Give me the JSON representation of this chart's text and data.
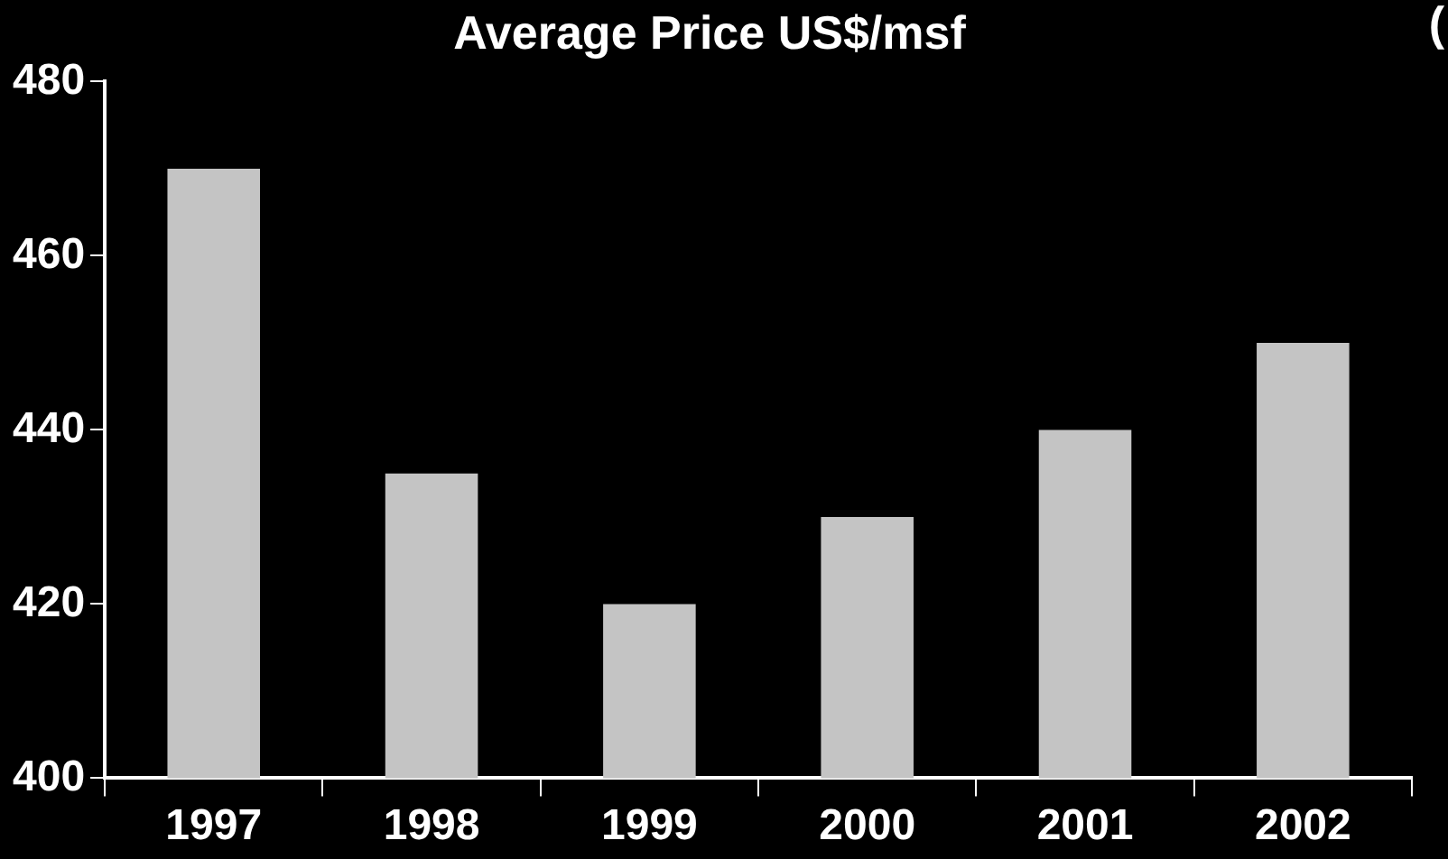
{
  "chart_data": {
    "type": "bar",
    "title": "Average Price US$/msf",
    "categories": [
      "1997",
      "1998",
      "1999",
      "2000",
      "2001",
      "2002"
    ],
    "values": [
      470,
      435,
      420,
      430,
      440,
      450
    ],
    "color": "#c4c4c4",
    "ylim": [
      400,
      480
    ],
    "yticks": [
      400,
      420,
      440,
      460,
      480
    ],
    "grid": false,
    "legend": false,
    "annotations": [
      "("
    ]
  }
}
